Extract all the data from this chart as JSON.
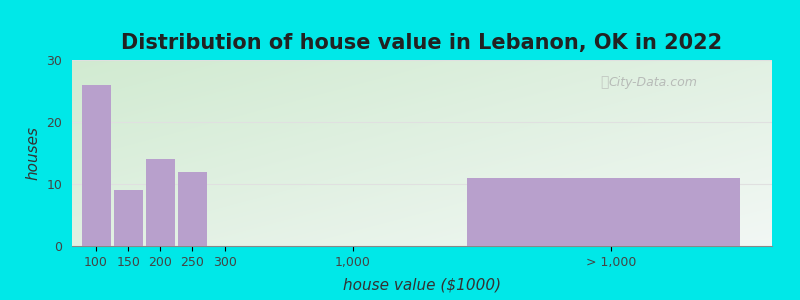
{
  "title": "Distribution of house value in Lebanon, OK in 2022",
  "xlabel": "house value ($1000)",
  "ylabel": "houses",
  "bar_labels": [
    "100",
    "150",
    "200",
    "250",
    "300",
    "1,000",
    "> 1,000"
  ],
  "bar_values": [
    26,
    9,
    14,
    12,
    0,
    0,
    11
  ],
  "bar_color": "#b8a0cc",
  "ylim": [
    0,
    30
  ],
  "yticks": [
    0,
    10,
    20,
    30
  ],
  "background_outer": "#00e8e8",
  "title_fontsize": 15,
  "axis_label_fontsize": 11,
  "tick_fontsize": 9,
  "watermark": "City-Data.com",
  "bar_positions": [
    0,
    1,
    2,
    3,
    4,
    8,
    12
  ],
  "bar_widths": [
    0.9,
    0.9,
    0.9,
    0.9,
    0.9,
    0.9,
    8.5
  ],
  "xtick_positions": [
    0.45,
    1.45,
    2.45,
    3.45,
    4.45,
    8.45,
    16.5
  ],
  "xlim": [
    -0.3,
    21.5
  ],
  "grid_color": "#e0e0e0",
  "gradient_top_left": "#c8e8c8",
  "gradient_bottom_right": "#f0fff8"
}
